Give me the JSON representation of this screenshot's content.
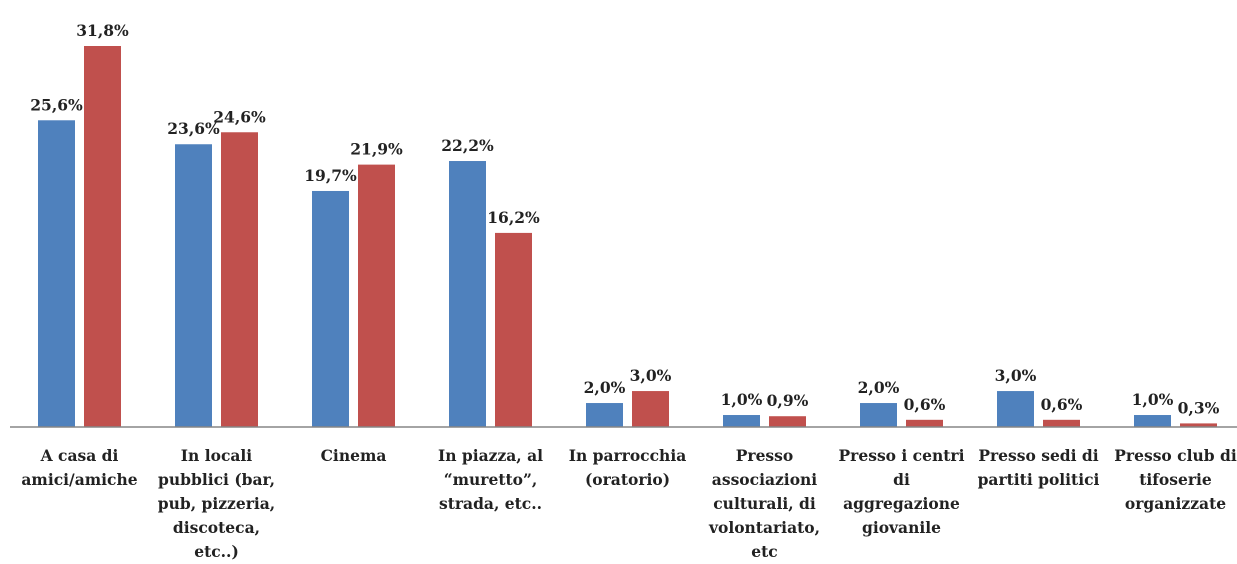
{
  "chart_data": {
    "type": "bar",
    "categories": [
      [
        "A casa di",
        "amici/amiche"
      ],
      [
        "In locali",
        "pubblici (bar,",
        "pub, pizzeria,",
        "discoteca,",
        "etc..)"
      ],
      [
        "Cinema"
      ],
      [
        "In piazza, al",
        "“muretto”,",
        "strada, etc.."
      ],
      [
        "In parrocchia",
        "(oratorio)"
      ],
      [
        "Presso",
        "associazioni",
        "culturali, di",
        "volontariato,",
        "etc"
      ],
      [
        "Presso i centri",
        "di",
        "aggregazione",
        "giovanile"
      ],
      [
        "Presso sedi di",
        "partiti politici"
      ],
      [
        "Presso club di",
        "tifoserie",
        "organizzate"
      ]
    ],
    "series": [
      {
        "values": [
          25.6,
          23.6,
          19.7,
          22.2,
          2.0,
          1.0,
          2.0,
          3.0,
          1.0
        ],
        "labels": [
          "25,6%",
          "23,6%",
          "19,7%",
          "22,2%",
          "2,0%",
          "1,0%",
          "2,0%",
          "3,0%",
          "1,0%"
        ],
        "color": "#4f81bd"
      },
      {
        "values": [
          31.8,
          24.6,
          21.9,
          16.2,
          3.0,
          0.9,
          0.6,
          0.6,
          0.3
        ],
        "labels": [
          "31,8%",
          "24,6%",
          "21,9%",
          "16,2%",
          "3,0%",
          "0,9%",
          "0,6%",
          "0,6%",
          "0,3%"
        ],
        "color": "#c0504d"
      }
    ],
    "axis_color": "#868686",
    "ylim": [
      0,
      32
    ],
    "grid": false,
    "legend": "none"
  }
}
